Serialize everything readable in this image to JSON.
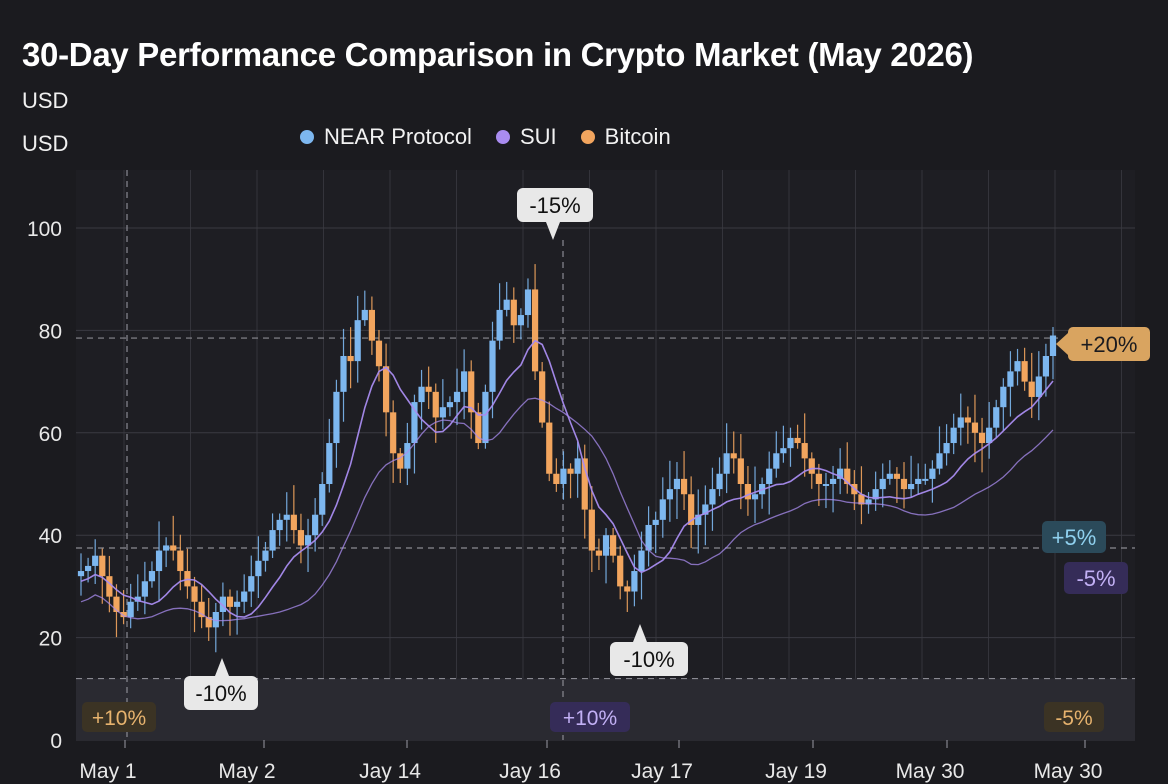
{
  "chart_data": {
    "type": "candlestick",
    "title": "30-Day Performance Comparison in Crypto Market (May 2026)",
    "units": [
      "USD",
      "USD"
    ],
    "ylim": [
      0,
      110
    ],
    "yticks": [
      0,
      20,
      40,
      60,
      80,
      100
    ],
    "xticks": [
      "May 1",
      "May 2",
      "Jay 14",
      "Jay 16",
      "Jay 17",
      "Jay 19",
      "May 30",
      "May 30"
    ],
    "grid": true,
    "legend_position": "top",
    "series": [
      {
        "name": "NEAR Protocol",
        "color": "#7db7ef"
      },
      {
        "name": "SUI",
        "color": "#a98cf0"
      },
      {
        "name": "Bitcoin",
        "color": "#f2a55e"
      }
    ],
    "closes": [
      33,
      34,
      36,
      32,
      28,
      25,
      24,
      27,
      28,
      31,
      33,
      37,
      38,
      37,
      33,
      30,
      27,
      24,
      22,
      25,
      28,
      26,
      27,
      29,
      32,
      35,
      37,
      41,
      43,
      44,
      41,
      38,
      40,
      44,
      50,
      58,
      68,
      75,
      74,
      82,
      84,
      78,
      73,
      64,
      56,
      53,
      58,
      66,
      69,
      68,
      63,
      65,
      66,
      68,
      72,
      64,
      58,
      68,
      78,
      84,
      86,
      81,
      83,
      88,
      72,
      62,
      52,
      50,
      53,
      52,
      55,
      45,
      37,
      36,
      40,
      36,
      30,
      29,
      33,
      37,
      42,
      43,
      47,
      49,
      51,
      48,
      42,
      44,
      46,
      49,
      52,
      56,
      55,
      50,
      47,
      48,
      50,
      53,
      56,
      57,
      59,
      58,
      55,
      52,
      50,
      50,
      51,
      53,
      50,
      48,
      46,
      47,
      49,
      51,
      52,
      51,
      49,
      50,
      51,
      51,
      53,
      56,
      58,
      61,
      63,
      62,
      60,
      58,
      61,
      65,
      69,
      72,
      74,
      70,
      67,
      71,
      75,
      79
    ],
    "annotations": {
      "callouts": [
        {
          "label": "-10%",
          "color": "#e8e8e8",
          "text_color": "#111111"
        },
        {
          "label": "-15%",
          "color": "#e8e8e8",
          "text_color": "#111111"
        },
        {
          "label": "-10%",
          "color": "#e8e8e8",
          "text_color": "#111111"
        }
      ],
      "right_badges": [
        {
          "label": "+20%",
          "color": "#d9a460",
          "text_color": "#1b1b1f",
          "value": 78.5
        },
        {
          "label": "+5%",
          "color": "#2b4a5a",
          "text_color": "#8fd0ee",
          "value": 37.5
        },
        {
          "label": "-5%",
          "color": "#352c58",
          "text_color": "#c2b0f5",
          "value": 37.5
        }
      ],
      "bottom_band": [
        {
          "label": "+10%",
          "color": "#3b3324",
          "text_color": "#e7b36e"
        },
        {
          "label": "+10%",
          "color": "#352c58",
          "text_color": "#c2b0f5"
        },
        {
          "label": "-5%",
          "color": "#3b3324",
          "text_color": "#e7b36e"
        }
      ]
    }
  }
}
